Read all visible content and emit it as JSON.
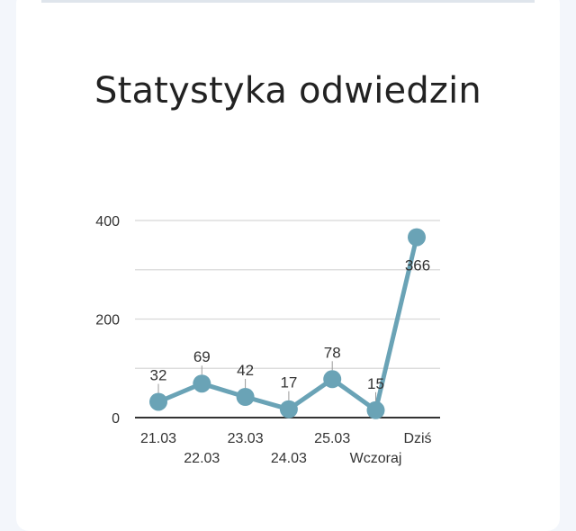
{
  "header": {
    "title": "Statystyka odwiedzin"
  },
  "chart_data": {
    "type": "line",
    "title": "Statystyka odwiedzin",
    "xlabel": "",
    "ylabel": "",
    "categories": [
      "21.03",
      "22.03",
      "23.03",
      "24.03",
      "25.03",
      "Wczoraj",
      "Dziś"
    ],
    "series": [
      {
        "values": [
          32,
          69,
          42,
          17,
          78,
          15,
          366
        ]
      }
    ],
    "data_labels": [
      "32",
      "69",
      "42",
      "17",
      "78",
      "15",
      "366"
    ],
    "y_ticks": [
      0,
      200,
      400
    ],
    "ylim": [
      0,
      400
    ],
    "grid": true,
    "legend": "none",
    "colors": {
      "series": "#6aa3b6",
      "grid": "#d8d8d8",
      "axis": "#333333",
      "card": "#ffffff",
      "background": "#f3f6fb"
    }
  }
}
